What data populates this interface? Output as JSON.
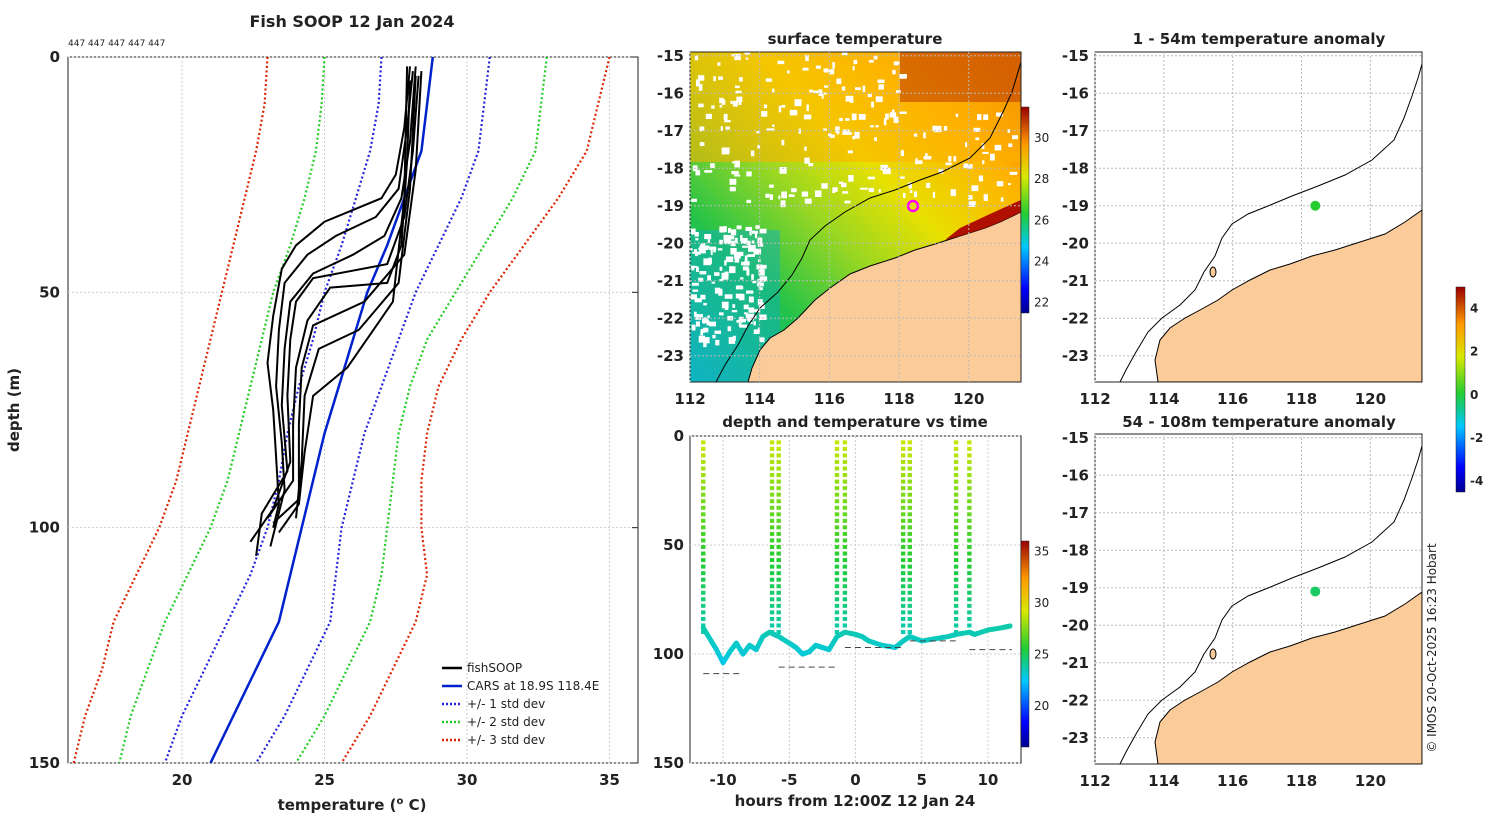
{
  "chart_data": [
    {
      "type": "line",
      "title": "Fish SOOP 12 Jan 2024",
      "annotation": "447 447 447 447 447",
      "xlabel": "temperature (",
      "xlabel_sup": "o",
      "xlabel_tail": " C)",
      "ylabel": "depth (m)",
      "xlim": [
        16,
        36
      ],
      "ylim": [
        0,
        150
      ],
      "xticks": [
        20,
        25,
        30,
        35
      ],
      "yticks": [
        0,
        50,
        100,
        150
      ],
      "legend_position": "bottom-right",
      "legend": [
        "fishSOOP",
        "CARS at 18.9S 118.4E",
        "+/- 1 std dev",
        "+/- 2 std dev",
        "+/- 3 std dev"
      ],
      "colors": {
        "fishsoop": "#000000",
        "cars": "#0022cc",
        "std1": "#2222dd",
        "std2": "#22cc22",
        "std3": "#dd2200"
      },
      "cars": [
        [
          28.8,
          0
        ],
        [
          28.6,
          10
        ],
        [
          28.4,
          20
        ],
        [
          27.8,
          30
        ],
        [
          27.2,
          40
        ],
        [
          26.5,
          50
        ],
        [
          26.0,
          60
        ],
        [
          25.5,
          70
        ],
        [
          25.0,
          80
        ],
        [
          24.6,
          90
        ],
        [
          24.2,
          100
        ],
        [
          23.8,
          110
        ],
        [
          23.4,
          120
        ],
        [
          22.6,
          130
        ],
        [
          21.8,
          140
        ],
        [
          21.0,
          150
        ]
      ],
      "std_bands": [
        {
          "level": 1,
          "left": [
            [
              27.0,
              0
            ],
            [
              26.9,
              10
            ],
            [
              26.6,
              20
            ],
            [
              26.1,
              30
            ],
            [
              25.6,
              40
            ],
            [
              25.0,
              50
            ],
            [
              24.6,
              60
            ],
            [
              24.1,
              70
            ],
            [
              23.7,
              80
            ],
            [
              23.4,
              90
            ],
            [
              23.0,
              100
            ],
            [
              22.4,
              110
            ],
            [
              21.6,
              120
            ],
            [
              20.8,
              130
            ],
            [
              20.0,
              140
            ],
            [
              19.4,
              150
            ]
          ],
          "right": [
            [
              30.8,
              0
            ],
            [
              30.6,
              10
            ],
            [
              30.4,
              20
            ],
            [
              29.8,
              30
            ],
            [
              29.0,
              40
            ],
            [
              28.2,
              50
            ],
            [
              27.6,
              60
            ],
            [
              27.0,
              70
            ],
            [
              26.4,
              80
            ],
            [
              26.0,
              90
            ],
            [
              25.6,
              100
            ],
            [
              25.4,
              110
            ],
            [
              25.2,
              120
            ],
            [
              24.4,
              130
            ],
            [
              23.6,
              140
            ],
            [
              22.6,
              150
            ]
          ]
        },
        {
          "level": 2,
          "left": [
            [
              25.0,
              0
            ],
            [
              24.9,
              10
            ],
            [
              24.7,
              20
            ],
            [
              24.3,
              30
            ],
            [
              23.8,
              40
            ],
            [
              23.2,
              50
            ],
            [
              22.8,
              60
            ],
            [
              22.4,
              70
            ],
            [
              22.0,
              80
            ],
            [
              21.6,
              90
            ],
            [
              21.0,
              100
            ],
            [
              20.2,
              110
            ],
            [
              19.4,
              120
            ],
            [
              18.8,
              130
            ],
            [
              18.2,
              140
            ],
            [
              17.8,
              150
            ]
          ],
          "right": [
            [
              32.8,
              0
            ],
            [
              32.6,
              10
            ],
            [
              32.4,
              20
            ],
            [
              31.6,
              30
            ],
            [
              30.6,
              40
            ],
            [
              29.6,
              50
            ],
            [
              28.6,
              60
            ],
            [
              28.0,
              70
            ],
            [
              27.6,
              80
            ],
            [
              27.4,
              90
            ],
            [
              27.2,
              100
            ],
            [
              27.0,
              110
            ],
            [
              26.6,
              120
            ],
            [
              25.8,
              130
            ],
            [
              25.0,
              140
            ],
            [
              24.0,
              150
            ]
          ]
        },
        {
          "level": 3,
          "left": [
            [
              23.0,
              0
            ],
            [
              22.9,
              10
            ],
            [
              22.6,
              20
            ],
            [
              22.2,
              30
            ],
            [
              21.8,
              40
            ],
            [
              21.4,
              50
            ],
            [
              21.0,
              60
            ],
            [
              20.6,
              70
            ],
            [
              20.2,
              80
            ],
            [
              19.8,
              90
            ],
            [
              19.2,
              100
            ],
            [
              18.4,
              110
            ],
            [
              17.6,
              120
            ],
            [
              17.2,
              130
            ],
            [
              16.6,
              140
            ],
            [
              16.2,
              150
            ]
          ],
          "right": [
            [
              35.0,
              0
            ],
            [
              34.6,
              10
            ],
            [
              34.2,
              20
            ],
            [
              33.2,
              30
            ],
            [
              32.0,
              40
            ],
            [
              30.8,
              50
            ],
            [
              29.8,
              60
            ],
            [
              29.0,
              70
            ],
            [
              28.6,
              80
            ],
            [
              28.4,
              90
            ],
            [
              28.4,
              100
            ],
            [
              28.6,
              110
            ],
            [
              28.2,
              120
            ],
            [
              27.4,
              130
            ],
            [
              26.6,
              140
            ],
            [
              25.6,
              150
            ]
          ]
        }
      ],
      "fishsoop": [
        [
          [
            28.0,
            2
          ],
          [
            27.8,
            15
          ],
          [
            27.5,
            25
          ],
          [
            27.0,
            30
          ],
          [
            25.0,
            35
          ],
          [
            24.0,
            40
          ],
          [
            23.5,
            45
          ],
          [
            23.2,
            55
          ],
          [
            23.0,
            65
          ],
          [
            23.2,
            75
          ],
          [
            23.3,
            85
          ],
          [
            23.4,
            95
          ],
          [
            23.2,
            100
          ]
        ],
        [
          [
            28.1,
            3
          ],
          [
            27.9,
            15
          ],
          [
            27.6,
            28
          ],
          [
            26.8,
            34
          ],
          [
            25.4,
            38
          ],
          [
            24.4,
            42
          ],
          [
            23.6,
            48
          ],
          [
            23.4,
            58
          ],
          [
            23.3,
            70
          ],
          [
            23.5,
            82
          ],
          [
            23.6,
            92
          ],
          [
            23.1,
            104
          ]
        ],
        [
          [
            28.2,
            2
          ],
          [
            28.0,
            18
          ],
          [
            27.7,
            30
          ],
          [
            27.1,
            38
          ],
          [
            26.0,
            42
          ],
          [
            24.6,
            46
          ],
          [
            23.8,
            52
          ],
          [
            23.6,
            62
          ],
          [
            23.5,
            74
          ],
          [
            23.7,
            88
          ],
          [
            22.8,
            97
          ],
          [
            22.6,
            106
          ]
        ],
        [
          [
            28.3,
            4
          ],
          [
            28.1,
            20
          ],
          [
            27.8,
            34
          ],
          [
            27.2,
            44
          ],
          [
            24.6,
            47
          ],
          [
            24.0,
            52
          ],
          [
            23.8,
            60
          ],
          [
            23.7,
            72
          ],
          [
            23.8,
            86
          ],
          [
            23.2,
            96
          ],
          [
            22.4,
            103
          ]
        ],
        [
          [
            28.0,
            5
          ],
          [
            27.9,
            22
          ],
          [
            27.7,
            40
          ],
          [
            27.2,
            48
          ],
          [
            25.2,
            49
          ],
          [
            24.4,
            56
          ],
          [
            24.0,
            66
          ],
          [
            23.9,
            78
          ],
          [
            23.9,
            90
          ],
          [
            23.0,
            98
          ]
        ],
        [
          [
            28.4,
            3
          ],
          [
            28.2,
            24
          ],
          [
            27.8,
            42
          ],
          [
            26.4,
            52
          ],
          [
            24.6,
            57
          ],
          [
            24.2,
            66
          ],
          [
            24.1,
            78
          ],
          [
            24.1,
            94
          ],
          [
            23.2,
            99
          ]
        ],
        [
          [
            28.2,
            4
          ],
          [
            28.0,
            28
          ],
          [
            27.6,
            48
          ],
          [
            26.2,
            58
          ],
          [
            24.8,
            62
          ],
          [
            24.3,
            72
          ],
          [
            24.2,
            86
          ],
          [
            24.0,
            98
          ]
        ],
        [
          [
            27.9,
            2
          ],
          [
            27.8,
            30
          ],
          [
            27.4,
            52
          ],
          [
            25.8,
            66
          ],
          [
            24.6,
            72
          ],
          [
            24.3,
            84
          ],
          [
            24.1,
            95
          ],
          [
            23.4,
            101
          ]
        ]
      ]
    },
    {
      "type": "heatmap",
      "title": "surface temperature",
      "xticks": [
        112,
        114,
        116,
        118,
        120
      ],
      "yticks": [
        -15,
        -16,
        -17,
        -18,
        -19,
        -20,
        -21,
        -22,
        -23
      ],
      "colorbar_ticks": [
        22,
        24,
        26,
        28,
        30
      ],
      "colorbar_range": [
        21.5,
        31.5
      ],
      "marker": {
        "lon": 118.4,
        "lat": -19.0
      }
    },
    {
      "type": "scatter",
      "title": "depth and temperature vs time",
      "xlabel": "hours from 12:00Z 12 Jan 24",
      "xlim": [
        -12.5,
        12.5
      ],
      "ylim": [
        0,
        150
      ],
      "xticks": [
        -10,
        -5,
        0,
        5,
        10
      ],
      "xtick_labels": [
        "-10",
        "-5",
        "0",
        "5",
        "10"
      ],
      "yticks": [
        0,
        50,
        100,
        150
      ],
      "colorbar_ticks": [
        20,
        25,
        30,
        35
      ],
      "colorbar_range": [
        16,
        36
      ],
      "dives": [
        -11.5,
        -6.3,
        -5.8,
        -1.4,
        -0.8,
        3.6,
        4.1,
        7.6,
        8.6
      ],
      "bottom_track": [
        [
          -11.5,
          88
        ],
        [
          -11,
          93
        ],
        [
          -10.5,
          98
        ],
        [
          -10,
          104
        ],
        [
          -9.5,
          99
        ],
        [
          -9,
          95
        ],
        [
          -8.5,
          100
        ],
        [
          -8,
          96
        ],
        [
          -7.5,
          98
        ],
        [
          -7,
          92
        ],
        [
          -6.5,
          90
        ],
        [
          -5.8,
          92
        ],
        [
          -5,
          95
        ],
        [
          -4.5,
          97
        ],
        [
          -4,
          100
        ],
        [
          -3.5,
          99
        ],
        [
          -3,
          96
        ],
        [
          -2.5,
          97
        ],
        [
          -2,
          98
        ],
        [
          -1.4,
          92
        ],
        [
          -0.8,
          90
        ],
        [
          0,
          91
        ],
        [
          0.5,
          92
        ],
        [
          1,
          94
        ],
        [
          2,
          96
        ],
        [
          3,
          97
        ],
        [
          3.6,
          94
        ],
        [
          4.1,
          92
        ],
        [
          5,
          94
        ],
        [
          6,
          93
        ],
        [
          7,
          92
        ],
        [
          7.6,
          91
        ],
        [
          8.6,
          90
        ],
        [
          9,
          91
        ],
        [
          10,
          89
        ],
        [
          11,
          88
        ],
        [
          11.8,
          87
        ]
      ],
      "seafloor": [
        [
          -11.5,
          -8.6,
          109
        ],
        [
          -5.8,
          -1.4,
          106
        ],
        [
          -0.8,
          3.6,
          97
        ],
        [
          4.1,
          7.6,
          94
        ],
        [
          8.6,
          11.8,
          98
        ]
      ]
    },
    {
      "type": "scatter",
      "title": "1 - 54m temperature anomaly",
      "xticks": [
        112,
        114,
        116,
        118,
        120
      ],
      "yticks": [
        -15,
        -16,
        -17,
        -18,
        -19,
        -20,
        -21,
        -22,
        -23
      ],
      "point": {
        "lon": 118.4,
        "lat": -19.0,
        "anomaly": 0.1
      }
    },
    {
      "type": "scatter",
      "title": "54 - 108m temperature anomaly",
      "xticks": [
        112,
        114,
        116,
        118,
        120
      ],
      "yticks": [
        -15,
        -16,
        -17,
        -18,
        -19,
        -20,
        -21,
        -22,
        -23
      ],
      "point": {
        "lon": 118.4,
        "lat": -19.1,
        "anomaly": -0.3
      },
      "colorbar_ticks": [
        4,
        2,
        0,
        -2,
        -4
      ],
      "colorbar_range": [
        -4.5,
        5
      ]
    }
  ],
  "credit": "© IMOS 20-Oct-2025 16:23 Hobart"
}
